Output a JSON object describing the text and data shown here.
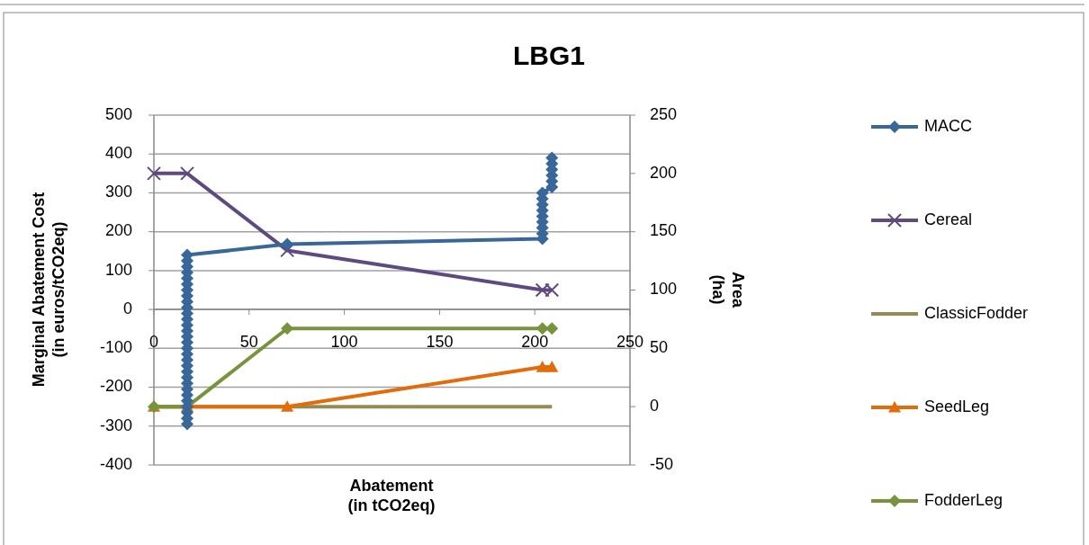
{
  "chart_data": {
    "type": "line",
    "title": "LBG1",
    "xlabel": "Abatement\n(in tCO2eq)",
    "ylabel": "Marginal Abatement Cost\n(in euros/tCO2eq)",
    "y2label": "Area\n(ha)",
    "xlim": [
      0,
      250
    ],
    "xticks": [
      0,
      50,
      100,
      150,
      200,
      250
    ],
    "ylim": [
      -400,
      500
    ],
    "yticks": [
      -400,
      -300,
      -200,
      -100,
      0,
      100,
      200,
      300,
      400,
      500
    ],
    "y2lim": [
      -50,
      250
    ],
    "y2ticks": [
      -50,
      0,
      50,
      100,
      150,
      200,
      250
    ],
    "grid": "y",
    "legend": "right",
    "line_style": "solid",
    "series": [
      {
        "name": "MACC",
        "color": "#3a6799",
        "marker": "diamond",
        "x": [
          17.5,
          17.5,
          17.5,
          17.5,
          17.5,
          17.5,
          17.5,
          17.5,
          17.5,
          17.5,
          17.5,
          17.5,
          17.5,
          17.5,
          17.5,
          17.5,
          17.5,
          17.5,
          17.5,
          17.5,
          17.5,
          17.5,
          17.5,
          17.5,
          17.5,
          17.5,
          17.5,
          17.5,
          17.5,
          17.5,
          70,
          204,
          204,
          204,
          204,
          204,
          204,
          204,
          204,
          204,
          209,
          209,
          209,
          209,
          209,
          209
        ],
        "values": [
          -295,
          -280,
          -265,
          -250,
          -235,
          -220,
          -205,
          -190,
          -175,
          -160,
          -145,
          -130,
          -115,
          -100,
          -85,
          -70,
          -55,
          -40,
          -25,
          -10,
          5,
          20,
          35,
          50,
          65,
          80,
          95,
          110,
          125,
          140,
          168,
          182,
          195,
          210,
          225,
          240,
          255,
          270,
          285,
          300,
          315,
          330,
          345,
          360,
          375,
          390
        ]
      },
      {
        "name": "Cereal",
        "color": "#5f4a7f",
        "marker": "cross",
        "axis": "y2",
        "x": [
          0,
          17.5,
          70,
          204,
          209
        ],
        "values": [
          200,
          200,
          134,
          100,
          100
        ]
      },
      {
        "name": "ClassicFodder",
        "color": "#948a54",
        "marker": "none",
        "axis": "y2",
        "x": [
          0,
          17.5,
          70,
          204,
          209
        ],
        "values": [
          0,
          0,
          0,
          0,
          0
        ]
      },
      {
        "name": "SeedLeg",
        "color": "#e36c0a",
        "marker": "triangle",
        "axis": "y2",
        "x": [
          0,
          17.5,
          70,
          204,
          209
        ],
        "values": [
          0,
          0,
          0,
          34,
          34
        ]
      },
      {
        "name": "FodderLeg",
        "color": "#77933c",
        "marker": "diamond",
        "axis": "y2",
        "x": [
          0,
          17.5,
          70,
          204,
          209
        ],
        "values": [
          0,
          0,
          67,
          67,
          67
        ]
      }
    ]
  }
}
